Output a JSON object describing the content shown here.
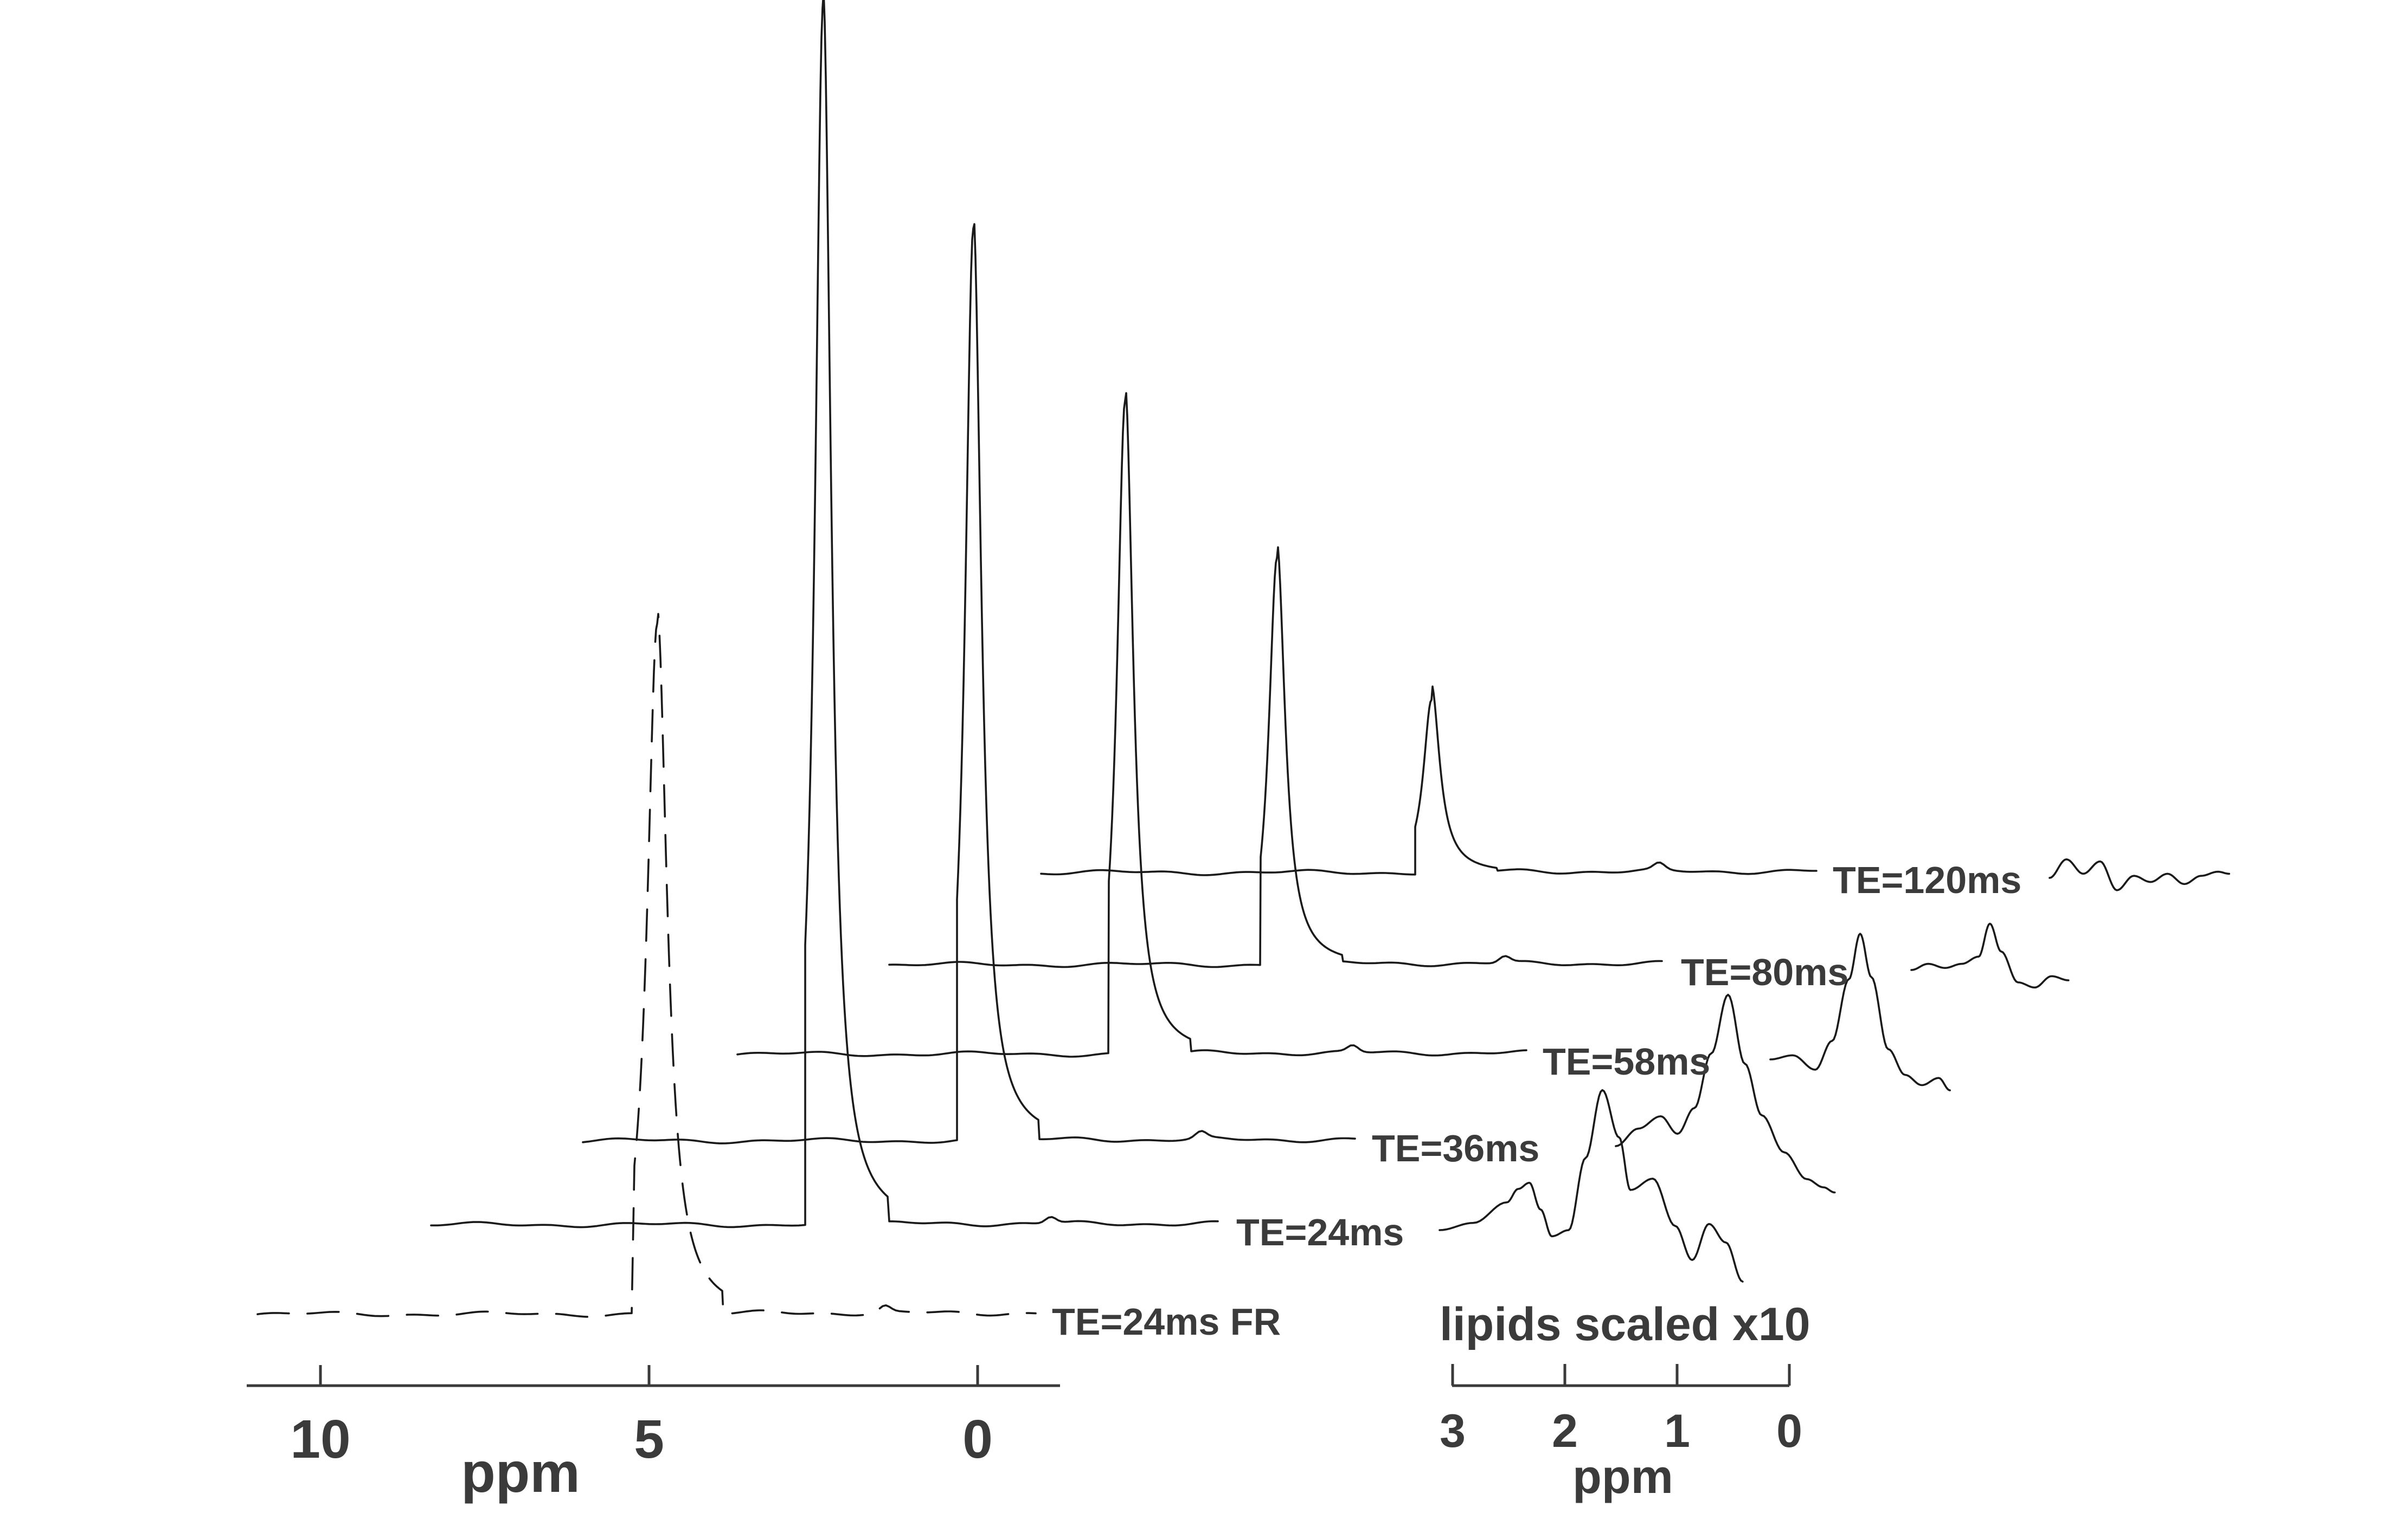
{
  "chart_data": {
    "type": "line",
    "title": "",
    "colors": {
      "trace": "#1a1a1a",
      "text": "#3b3b3b"
    },
    "main_axis": {
      "xlabel": "ppm",
      "reversed": true,
      "xlim": [
        11.2,
        -1.2
      ],
      "ticks": [
        10,
        5,
        0
      ],
      "tick_labels": [
        "10",
        "5",
        "0"
      ]
    },
    "lipid_axis": {
      "xlabel": "ppm",
      "reversed": true,
      "xlim": [
        3,
        0
      ],
      "ticks": [
        3,
        2,
        1,
        0
      ],
      "tick_labels": [
        "3",
        "2",
        "1",
        "0"
      ],
      "note": "lipids scaled x10"
    },
    "series": [
      {
        "name": "TE=24ms FR",
        "style": "dashed",
        "peak_ppm": 4.7,
        "peak_height": 0.56,
        "lipids": []
      },
      {
        "name": "TE=24ms",
        "style": "solid",
        "peak_ppm": 4.7,
        "peak_height": 0.99,
        "lipids": [
          [
            3.0,
            0.0
          ],
          [
            2.7,
            0.007
          ],
          [
            2.4,
            0.027
          ],
          [
            2.3,
            0.04
          ],
          [
            2.2,
            0.046
          ],
          [
            2.1,
            0.02
          ],
          [
            2.0,
            -0.006
          ],
          [
            1.85,
            0.0
          ],
          [
            1.7,
            0.07
          ],
          [
            1.55,
            0.136
          ],
          [
            1.4,
            0.09
          ],
          [
            1.3,
            0.039
          ],
          [
            1.1,
            0.05
          ],
          [
            0.9,
            0.004
          ],
          [
            0.75,
            -0.029
          ],
          [
            0.6,
            0.006
          ],
          [
            0.45,
            -0.012
          ],
          [
            0.3,
            -0.05
          ]
        ]
      },
      {
        "name": "TE=36ms",
        "style": "solid",
        "peak_ppm": 4.7,
        "peak_height": 0.74,
        "lipids": [
          [
            3.0,
            0.0
          ],
          [
            2.8,
            0.017
          ],
          [
            2.6,
            0.029
          ],
          [
            2.45,
            0.012
          ],
          [
            2.3,
            0.037
          ],
          [
            2.15,
            0.09
          ],
          [
            2.0,
            0.147
          ],
          [
            1.85,
            0.08
          ],
          [
            1.7,
            0.03
          ],
          [
            1.5,
            -0.006
          ],
          [
            1.3,
            -0.032
          ],
          [
            1.15,
            -0.04
          ],
          [
            1.05,
            -0.045
          ]
        ]
      },
      {
        "name": "TE=58ms",
        "style": "solid",
        "peak_ppm": 4.7,
        "peak_height": 0.53,
        "lipids": [
          [
            3.0,
            0.0
          ],
          [
            2.8,
            0.004
          ],
          [
            2.6,
            -0.01
          ],
          [
            2.45,
            0.018
          ],
          [
            2.3,
            0.078
          ],
          [
            2.2,
            0.122
          ],
          [
            2.1,
            0.08
          ],
          [
            1.95,
            0.01
          ],
          [
            1.8,
            -0.015
          ],
          [
            1.65,
            -0.025
          ],
          [
            1.5,
            -0.018
          ],
          [
            1.4,
            -0.03
          ]
        ]
      },
      {
        "name": "TE=80ms",
        "style": "solid",
        "peak_ppm": 4.7,
        "peak_height": 0.33,
        "lipids": [
          [
            3.0,
            0.0
          ],
          [
            2.85,
            0.006
          ],
          [
            2.7,
            0.002
          ],
          [
            2.55,
            0.006
          ],
          [
            2.4,
            0.013
          ],
          [
            2.3,
            0.045
          ],
          [
            2.2,
            0.018
          ],
          [
            2.05,
            -0.012
          ],
          [
            1.9,
            -0.017
          ],
          [
            1.75,
            -0.006
          ],
          [
            1.6,
            -0.01
          ]
        ]
      },
      {
        "name": "TE=120ms",
        "style": "solid",
        "peak_ppm": 4.7,
        "peak_height": 0.14,
        "lipids": [
          [
            3.0,
            0.0
          ],
          [
            2.85,
            0.018
          ],
          [
            2.7,
            0.004
          ],
          [
            2.55,
            0.016
          ],
          [
            2.4,
            -0.012
          ],
          [
            2.25,
            0.002
          ],
          [
            2.1,
            -0.004
          ],
          [
            1.95,
            0.004
          ],
          [
            1.8,
            -0.006
          ],
          [
            1.65,
            0.002
          ],
          [
            1.5,
            0.006
          ],
          [
            1.4,
            0.004
          ]
        ]
      }
    ]
  }
}
